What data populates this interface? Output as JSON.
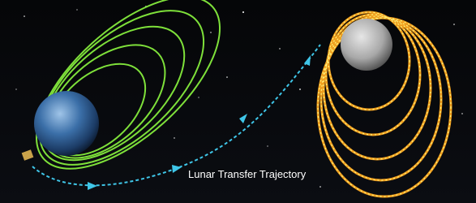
{
  "label": "Lunar Transfer Trajectory"
}
